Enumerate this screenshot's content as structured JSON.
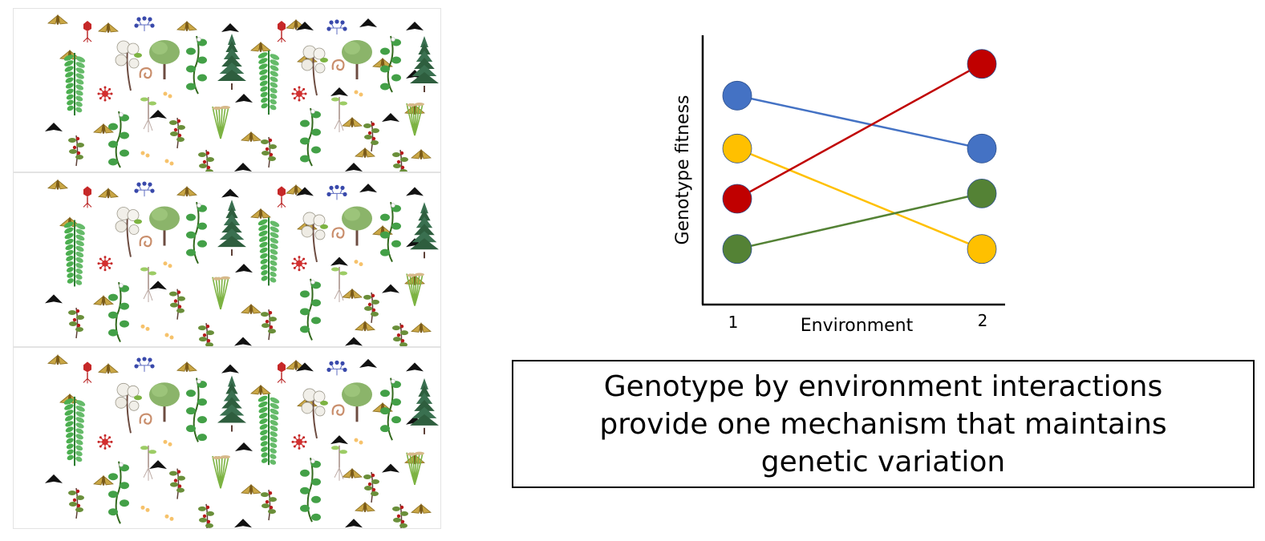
{
  "chart_data": {
    "type": "line",
    "xlabel": "Environment",
    "ylabel": "Genotype fitness",
    "categories": [
      "1",
      "2"
    ],
    "ylim": [
      0,
      1
    ],
    "grid": false,
    "series": [
      {
        "color": "#4472c4",
        "values": [
          0.79,
          0.59
        ]
      },
      {
        "color": "#ffc000",
        "values": [
          0.59,
          0.21
        ]
      },
      {
        "color": "#c00000",
        "values": [
          0.4,
          0.91
        ]
      },
      {
        "color": "#548235",
        "values": [
          0.21,
          0.42
        ]
      }
    ]
  },
  "caption": {
    "text": "Genotype by environment interactions provide one mechanism that maintains genetic variation"
  },
  "collage": {
    "strips": 3,
    "icons": [
      "moth-icon",
      "black-moth-icon",
      "fern-icon",
      "cotton-plant-icon",
      "tree-icon",
      "pine-tree-icon",
      "vine-icon",
      "grass-icon",
      "seedling-icon",
      "virus-icon",
      "bacteriophage-icon",
      "worm-icon",
      "berry-plant-icon"
    ]
  }
}
